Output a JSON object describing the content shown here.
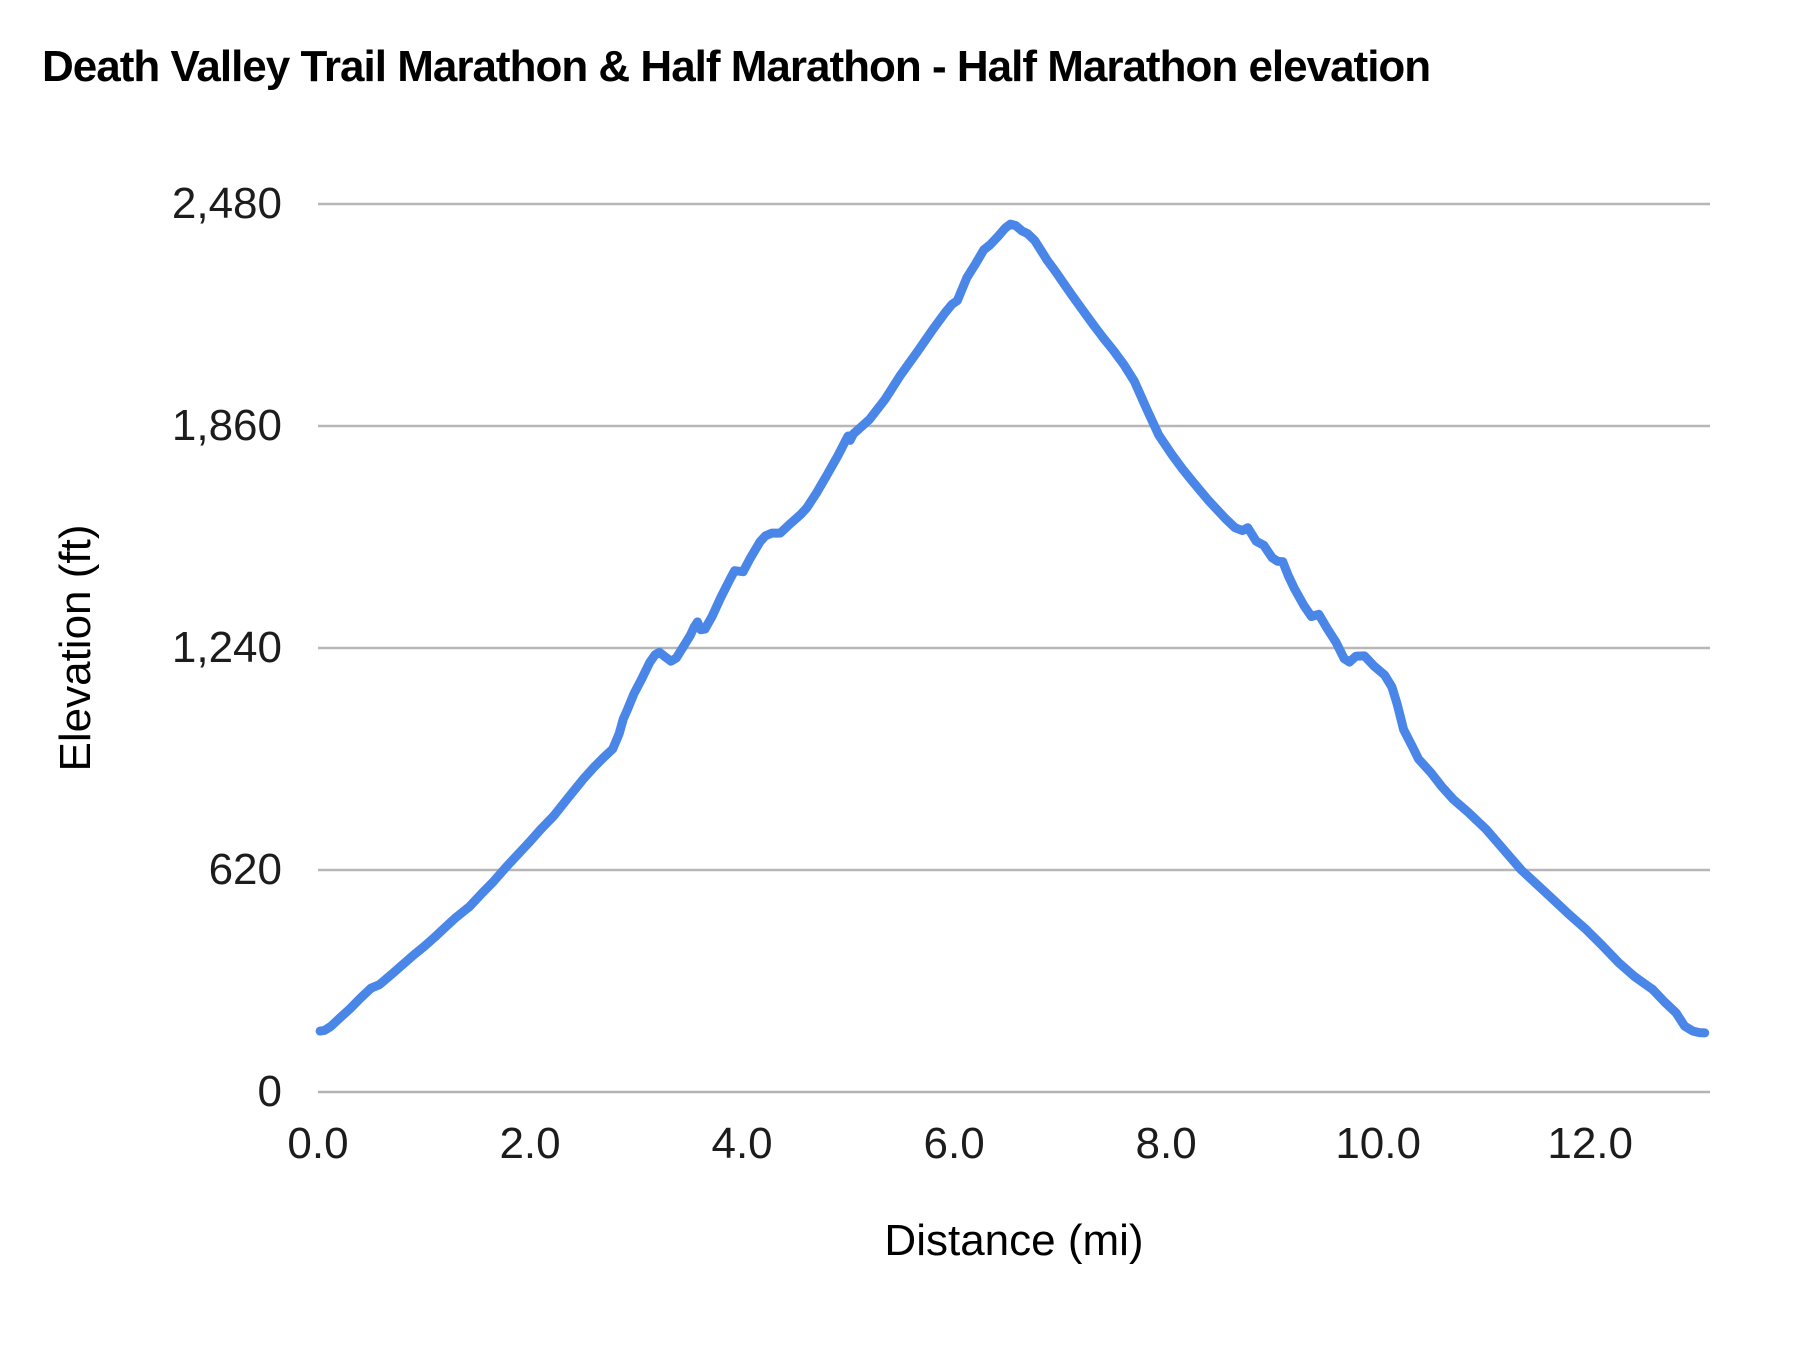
{
  "title": "Death Valley Trail Marathon & Half Marathon - Half Marathon elevation",
  "colors": {
    "line": "#4a86e8",
    "grid": "#b7b7b7",
    "baseline": "#b3b3b3",
    "tick_text": "#1c1c1c",
    "title_text": "#000000",
    "background": "#ffffff"
  },
  "chart_data": {
    "type": "line",
    "title": "Death Valley Trail Marathon & Half Marathon - Half Marathon elevation",
    "xlabel": "Distance (mi)",
    "ylabel": "Elevation (ft)",
    "xlim": [
      0,
      13.13
    ],
    "ylim": [
      0,
      2480
    ],
    "grid": "horizontal-only",
    "legend": "none",
    "x_ticks": [
      {
        "value": 0,
        "label": "0.0"
      },
      {
        "value": 2,
        "label": "2.0"
      },
      {
        "value": 4,
        "label": "4.0"
      },
      {
        "value": 6,
        "label": "6.0"
      },
      {
        "value": 8,
        "label": "8.0"
      },
      {
        "value": 10,
        "label": "10.0"
      },
      {
        "value": 12,
        "label": "12.0"
      }
    ],
    "y_ticks": [
      {
        "value": 0,
        "label": "0"
      },
      {
        "value": 620,
        "label": "620"
      },
      {
        "value": 1240,
        "label": "1,240"
      },
      {
        "value": 1860,
        "label": "1,860"
      },
      {
        "value": 2480,
        "label": "2,480"
      }
    ],
    "series": [
      {
        "name": "Half Marathon elevation",
        "color": "#4a86e8",
        "points": [
          [
            0.02,
            170
          ],
          [
            0.06,
            172
          ],
          [
            0.12,
            183
          ],
          [
            0.2,
            205
          ],
          [
            0.3,
            232
          ],
          [
            0.4,
            262
          ],
          [
            0.5,
            290
          ],
          [
            0.58,
            300
          ],
          [
            0.7,
            330
          ],
          [
            0.8,
            356
          ],
          [
            0.9,
            382
          ],
          [
            1.0,
            406
          ],
          [
            1.1,
            432
          ],
          [
            1.2,
            460
          ],
          [
            1.3,
            487
          ],
          [
            1.43,
            518
          ],
          [
            1.55,
            556
          ],
          [
            1.65,
            586
          ],
          [
            1.78,
            630
          ],
          [
            1.9,
            668
          ],
          [
            2.0,
            700
          ],
          [
            2.1,
            733
          ],
          [
            2.22,
            770
          ],
          [
            2.35,
            818
          ],
          [
            2.5,
            873
          ],
          [
            2.6,
            906
          ],
          [
            2.7,
            936
          ],
          [
            2.78,
            958
          ],
          [
            2.84,
            1000
          ],
          [
            2.88,
            1042
          ],
          [
            2.92,
            1069
          ],
          [
            2.98,
            1112
          ],
          [
            3.05,
            1152
          ],
          [
            3.13,
            1200
          ],
          [
            3.18,
            1221
          ],
          [
            3.22,
            1228
          ],
          [
            3.28,
            1214
          ],
          [
            3.33,
            1203
          ],
          [
            3.38,
            1212
          ],
          [
            3.45,
            1246
          ],
          [
            3.51,
            1274
          ],
          [
            3.55,
            1300
          ],
          [
            3.58,
            1313
          ],
          [
            3.61,
            1291
          ],
          [
            3.65,
            1293
          ],
          [
            3.72,
            1330
          ],
          [
            3.8,
            1382
          ],
          [
            3.89,
            1434
          ],
          [
            3.93,
            1456
          ],
          [
            4.01,
            1453
          ],
          [
            4.08,
            1492
          ],
          [
            4.17,
            1537
          ],
          [
            4.22,
            1553
          ],
          [
            4.28,
            1561
          ],
          [
            4.36,
            1561
          ],
          [
            4.45,
            1586
          ],
          [
            4.55,
            1612
          ],
          [
            4.61,
            1631
          ],
          [
            4.7,
            1672
          ],
          [
            4.8,
            1723
          ],
          [
            4.9,
            1775
          ],
          [
            4.97,
            1815
          ],
          [
            5.0,
            1832
          ],
          [
            5.02,
            1820
          ],
          [
            5.05,
            1838
          ],
          [
            5.2,
            1878
          ],
          [
            5.35,
            1935
          ],
          [
            5.49,
            2000
          ],
          [
            5.65,
            2066
          ],
          [
            5.8,
            2130
          ],
          [
            5.92,
            2178
          ],
          [
            5.98,
            2200
          ],
          [
            6.03,
            2210
          ],
          [
            6.12,
            2274
          ],
          [
            6.2,
            2312
          ],
          [
            6.28,
            2352
          ],
          [
            6.34,
            2366
          ],
          [
            6.41,
            2388
          ],
          [
            6.48,
            2412
          ],
          [
            6.53,
            2424
          ],
          [
            6.58,
            2420
          ],
          [
            6.64,
            2405
          ],
          [
            6.69,
            2398
          ],
          [
            6.76,
            2378
          ],
          [
            6.81,
            2355
          ],
          [
            6.88,
            2322
          ],
          [
            6.93,
            2302
          ],
          [
            6.97,
            2286
          ],
          [
            7.03,
            2260
          ],
          [
            7.12,
            2222
          ],
          [
            7.22,
            2181
          ],
          [
            7.32,
            2140
          ],
          [
            7.41,
            2105
          ],
          [
            7.5,
            2072
          ],
          [
            7.6,
            2032
          ],
          [
            7.7,
            1985
          ],
          [
            7.82,
            1905
          ],
          [
            7.93,
            1835
          ],
          [
            8.05,
            1782
          ],
          [
            8.15,
            1742
          ],
          [
            8.25,
            1705
          ],
          [
            8.4,
            1652
          ],
          [
            8.56,
            1601
          ],
          [
            8.65,
            1576
          ],
          [
            8.72,
            1568
          ],
          [
            8.77,
            1576
          ],
          [
            8.85,
            1538
          ],
          [
            8.92,
            1527
          ],
          [
            9.0,
            1492
          ],
          [
            9.05,
            1482
          ],
          [
            9.1,
            1481
          ],
          [
            9.15,
            1443
          ],
          [
            9.21,
            1406
          ],
          [
            9.3,
            1358
          ],
          [
            9.37,
            1328
          ],
          [
            9.44,
            1334
          ],
          [
            9.52,
            1294
          ],
          [
            9.6,
            1257
          ],
          [
            9.68,
            1210
          ],
          [
            9.73,
            1201
          ],
          [
            9.79,
            1217
          ],
          [
            9.87,
            1218
          ],
          [
            9.96,
            1190
          ],
          [
            10.06,
            1165
          ],
          [
            10.13,
            1131
          ],
          [
            10.18,
            1082
          ],
          [
            10.24,
            1012
          ],
          [
            10.32,
            966
          ],
          [
            10.38,
            930
          ],
          [
            10.5,
            891
          ],
          [
            10.6,
            853
          ],
          [
            10.71,
            817
          ],
          [
            10.85,
            781
          ],
          [
            11.02,
            733
          ],
          [
            11.18,
            678
          ],
          [
            11.35,
            620
          ],
          [
            11.5,
            579
          ],
          [
            11.65,
            538
          ],
          [
            11.8,
            496
          ],
          [
            11.96,
            454
          ],
          [
            12.1,
            413
          ],
          [
            12.27,
            361
          ],
          [
            12.42,
            322
          ],
          [
            12.59,
            286
          ],
          [
            12.7,
            252
          ],
          [
            12.81,
            221
          ],
          [
            12.89,
            184
          ],
          [
            12.97,
            170
          ],
          [
            13.03,
            166
          ],
          [
            13.08,
            165
          ]
        ]
      }
    ]
  }
}
